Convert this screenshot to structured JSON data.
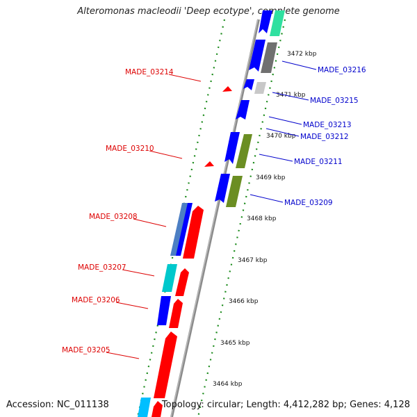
{
  "title": "Alteromonas macleodii 'Deep ecotype', complete genome",
  "footer": {
    "accession": "Accession: NC_011138",
    "summary": "Topology: circular; Length: 4,412,282 bp; Genes: 4,128"
  },
  "colors": {
    "backbone": "#888888",
    "scale_ticks": "#1a8a1a",
    "forward_label": "#dd0000",
    "reverse_label": "#0000cc",
    "reverse_strand_gene": "#ff0000",
    "forward_strand_gene": "#0000ff"
  },
  "scale_labels": [
    "3464 kbp",
    "3465 kbp",
    "3466 kbp",
    "3467 kbp",
    "3468 kbp",
    "3469 kbp",
    "3470 kbp",
    "3471 kbp",
    "3472 kbp"
  ],
  "gene_labels": {
    "left": [
      "MADE_03214",
      "MADE_03210",
      "MADE_03208",
      "MADE_03207",
      "MADE_03206",
      "MADE_03205"
    ],
    "right": [
      "MADE_03216",
      "MADE_03215",
      "MADE_03213",
      "MADE_03212",
      "MADE_03211",
      "MADE_03209"
    ]
  }
}
